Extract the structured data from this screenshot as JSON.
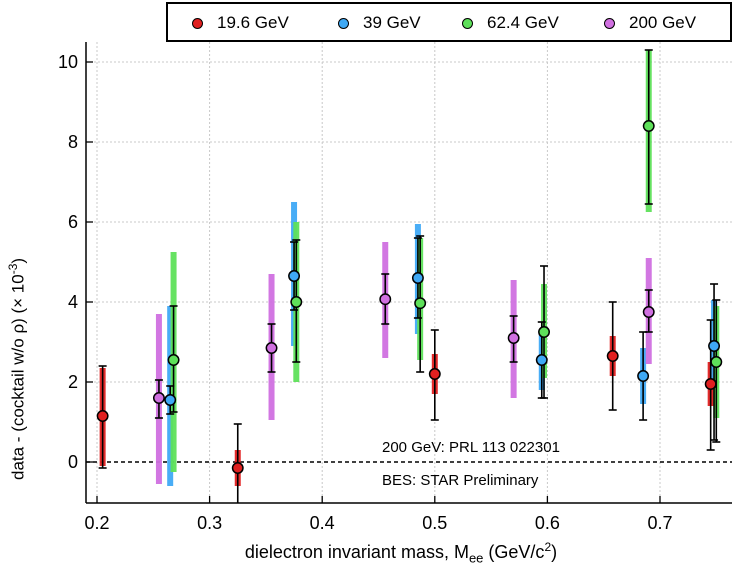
{
  "chart_data": {
    "type": "scatter",
    "xlabel_main": "dielectron invariant mass, M",
    "xlabel_sub": "ee",
    "xlabel_unit_pre": " (GeV/c",
    "xlabel_unit_sup": "2",
    "xlabel_unit_post": ")",
    "ylabel_main": "data - (cocktail w/o ρ) (× 10",
    "ylabel_sup": "-3",
    "ylabel_post": ")",
    "xlim": [
      0.2,
      0.75
    ],
    "ylim": [
      -1.0,
      10.3
    ],
    "xticks": [
      "0.2",
      "0.3",
      "0.4",
      "0.5",
      "0.6",
      "0.7"
    ],
    "xtick_values": [
      0.2,
      0.3,
      0.4,
      0.5,
      0.6,
      0.7
    ],
    "yticks": [
      "0",
      "2",
      "4",
      "6",
      "8",
      "10"
    ],
    "ytick_values": [
      0,
      2,
      4,
      6,
      8,
      10
    ],
    "grid": true,
    "reference_line": 0,
    "legend_position": "top",
    "annotations": [
      "200 GeV: PRL  113 022301",
      "BES: STAR Preliminary"
    ],
    "series": [
      {
        "name": "19.6 GeV",
        "color": "#e02020",
        "points": [
          {
            "x": 0.205,
            "y": 1.15,
            "stat": [
              -0.15,
              2.4
            ],
            "sys": [
              -0.1,
              2.35
            ]
          },
          {
            "x": 0.325,
            "y": -0.15,
            "stat": [
              -1.05,
              0.95
            ],
            "sys": [
              -0.6,
              0.3
            ]
          },
          {
            "x": 0.5,
            "y": 2.2,
            "stat": [
              1.05,
              3.3
            ],
            "sys": [
              1.7,
              2.7
            ]
          },
          {
            "x": 0.658,
            "y": 2.65,
            "stat": [
              1.3,
              4.0
            ],
            "sys": [
              2.15,
              3.15
            ]
          },
          {
            "x": 0.745,
            "y": 1.95,
            "stat": [
              0.3,
              3.55
            ],
            "sys": [
              1.4,
              2.5
            ]
          }
        ]
      },
      {
        "name": "39 GeV",
        "color": "#3fa9f5",
        "points": [
          {
            "x": 0.265,
            "y": 1.55,
            "stat": [
              1.2,
              1.9
            ],
            "sys": [
              -0.6,
              3.9
            ]
          },
          {
            "x": 0.375,
            "y": 4.65,
            "stat": [
              3.8,
              5.5
            ],
            "sys": [
              2.9,
              6.5
            ]
          },
          {
            "x": 0.485,
            "y": 4.6,
            "stat": [
              3.6,
              5.6
            ],
            "sys": [
              3.2,
              5.95
            ]
          },
          {
            "x": 0.595,
            "y": 2.55,
            "stat": [
              1.6,
              3.5
            ],
            "sys": [
              1.8,
              3.3
            ]
          },
          {
            "x": 0.685,
            "y": 2.15,
            "stat": [
              1.05,
              3.25
            ],
            "sys": [
              1.45,
              2.85
            ]
          },
          {
            "x": 0.748,
            "y": 2.9,
            "stat": [
              0.55,
              4.45
            ],
            "sys": [
              1.9,
              4.05
            ]
          }
        ]
      },
      {
        "name": "62.4 GeV",
        "color": "#5ee05a",
        "points": [
          {
            "x": 0.268,
            "y": 2.55,
            "stat": [
              1.25,
              3.9
            ],
            "sys": [
              -0.25,
              5.25
            ]
          },
          {
            "x": 0.377,
            "y": 4.0,
            "stat": [
              2.5,
              5.55
            ],
            "sys": [
              2.0,
              6.0
            ]
          },
          {
            "x": 0.487,
            "y": 3.97,
            "stat": [
              2.25,
              5.65
            ],
            "sys": [
              2.55,
              5.6
            ]
          },
          {
            "x": 0.597,
            "y": 3.25,
            "stat": [
              1.6,
              4.9
            ],
            "sys": [
              2.1,
              4.45
            ]
          },
          {
            "x": 0.69,
            "y": 8.4,
            "stat": [
              6.45,
              10.3
            ],
            "sys": [
              6.25,
              10.3
            ]
          },
          {
            "x": 0.75,
            "y": 2.5,
            "stat": [
              0.5,
              4.05
            ],
            "sys": [
              1.1,
              3.9
            ]
          }
        ]
      },
      {
        "name": "200 GeV",
        "color": "#d070e0",
        "points": [
          {
            "x": 0.255,
            "y": 1.6,
            "stat": [
              1.1,
              2.05
            ],
            "sys": [
              -0.55,
              3.7
            ]
          },
          {
            "x": 0.355,
            "y": 2.85,
            "stat": [
              2.25,
              3.45
            ],
            "sys": [
              1.05,
              4.7
            ]
          },
          {
            "x": 0.456,
            "y": 4.07,
            "stat": [
              3.45,
              4.7
            ],
            "sys": [
              2.6,
              5.5
            ]
          },
          {
            "x": 0.57,
            "y": 3.1,
            "stat": [
              2.5,
              3.65
            ],
            "sys": [
              1.6,
              4.55
            ]
          },
          {
            "x": 0.69,
            "y": 3.75,
            "stat": [
              3.25,
              4.3
            ],
            "sys": [
              2.45,
              5.1
            ]
          }
        ]
      }
    ]
  }
}
